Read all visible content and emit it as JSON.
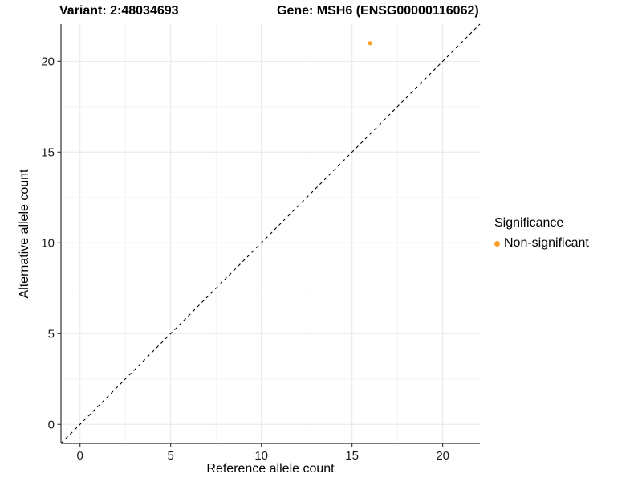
{
  "chart_data": {
    "type": "scatter",
    "titles": [
      "Variant: 2:48034693",
      "Gene: MSH6 (ENSG00000116062)"
    ],
    "xlabel": "Reference allele count",
    "ylabel": "Alternative allele count",
    "xlim": [
      -1.05,
      22.05
    ],
    "ylim": [
      -1.05,
      22.05
    ],
    "x_ticks": [
      0,
      5,
      10,
      15,
      20
    ],
    "y_ticks": [
      0,
      5,
      10,
      15,
      20
    ],
    "grid": "major+minor",
    "identity_line": {
      "style": "dashed",
      "color": "#000000",
      "equation": "y = x"
    },
    "series": [
      {
        "name": "Non-significant",
        "color": "#F9A02B",
        "points": [
          {
            "x": 16,
            "y": 21
          }
        ]
      }
    ],
    "legend": {
      "title": "Significance",
      "position": "right",
      "entries": [
        {
          "label": "Non-significant",
          "color": "#F9A02B",
          "marker": "circle"
        }
      ]
    },
    "colors": {
      "background": "#FFFFFF",
      "grid_major": "#E8E8E8",
      "grid_minor": "#F3F3F3",
      "axis": "#333333",
      "text": "#000000"
    }
  }
}
